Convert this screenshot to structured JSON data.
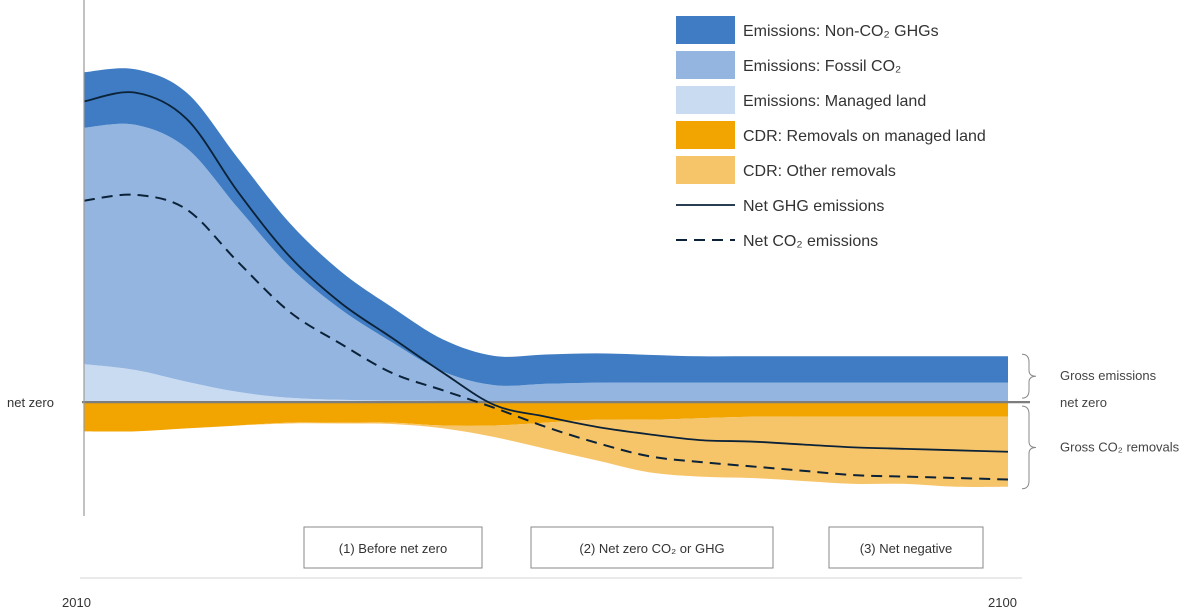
{
  "chart_data": {
    "type": "area",
    "x": [
      2010,
      2015,
      2020,
      2025,
      2030,
      2035,
      2040,
      2045,
      2050,
      2055,
      2060,
      2065,
      2070,
      2075,
      2080,
      2085,
      2090,
      2095,
      2100
    ],
    "xlim": [
      2010,
      2100
    ],
    "ylim": [
      -3.9,
      13.5
    ],
    "series": [
      {
        "name": "Emissions: Non-CO2 GHGs",
        "kind": "stack-positive",
        "color": "#3f7cc3",
        "values": [
          1.9,
          1.9,
          1.9,
          1.7,
          1.5,
          1.3,
          1.2,
          1.1,
          1.0,
          1.0,
          1.0,
          0.95,
          0.9,
          0.9,
          0.9,
          0.9,
          0.9,
          0.9,
          0.9
        ]
      },
      {
        "name": "Emissions: Fossil CO2",
        "kind": "stack-positive",
        "color": "#93b5e0",
        "values": [
          8.1,
          8.4,
          8.0,
          6.3,
          4.5,
          3.1,
          2.0,
          1.0,
          0.55,
          0.6,
          0.65,
          0.65,
          0.65,
          0.65,
          0.65,
          0.65,
          0.65,
          0.65,
          0.65
        ]
      },
      {
        "name": "Emissions: Managed land",
        "kind": "stack-positive",
        "color": "#c9dbf1",
        "values": [
          1.3,
          1.1,
          0.7,
          0.35,
          0.15,
          0.08,
          0.05,
          0.04,
          0.03,
          0.03,
          0.02,
          0.02,
          0.02,
          0.02,
          0.02,
          0.02,
          0.02,
          0.02,
          0.02
        ]
      },
      {
        "name": "CDR: Removals on managed land",
        "kind": "stack-negative",
        "color": "#f2a400",
        "values": [
          -1.0,
          -1.0,
          -0.9,
          -0.8,
          -0.7,
          -0.7,
          -0.7,
          -0.8,
          -0.8,
          -0.7,
          -0.6,
          -0.6,
          -0.55,
          -0.5,
          -0.5,
          -0.5,
          -0.5,
          -0.5,
          -0.5
        ]
      },
      {
        "name": "CDR: Other removals",
        "kind": "stack-negative",
        "color": "#f7c569",
        "values": [
          0,
          0,
          0,
          0,
          -0.03,
          -0.03,
          -0.05,
          -0.1,
          -0.4,
          -0.9,
          -1.4,
          -1.8,
          -2.0,
          -2.1,
          -2.2,
          -2.3,
          -2.3,
          -2.4,
          -2.4
        ]
      },
      {
        "name": "Net GHG emissions",
        "kind": "line",
        "color": "#0b2238",
        "values": [
          10.3,
          10.6,
          9.7,
          7.2,
          5.0,
          3.4,
          2.2,
          1.0,
          -0.1,
          -0.5,
          -0.85,
          -1.1,
          -1.3,
          -1.35,
          -1.45,
          -1.55,
          -1.6,
          -1.65,
          -1.7
        ]
      },
      {
        "name": "Net CO2 emissions",
        "kind": "dashed-line",
        "color": "#0b2238",
        "values": [
          6.9,
          7.1,
          6.6,
          4.8,
          3.1,
          2.0,
          1.0,
          0.4,
          -0.2,
          -0.85,
          -1.4,
          -1.85,
          -2.05,
          -2.2,
          -2.35,
          -2.5,
          -2.55,
          -2.6,
          -2.65
        ]
      }
    ],
    "xlabel": "",
    "ylabel": "",
    "tick_labels": {
      "x_start": "2010",
      "x_end": "2100",
      "zero": "net zero"
    },
    "annotations": {
      "gross_emissions": "Gross emissions",
      "net_zero_right": "net zero",
      "gross_removals": "Gross CO₂ removals"
    },
    "phases": [
      "(1) Before net zero",
      "(2) Net zero CO₂ or GHG",
      "(3) Net negative"
    ],
    "legend_position": "top-right",
    "grid": false
  },
  "legend": {
    "items": [
      {
        "label": "Emissions: Non-CO₂ GHGs",
        "kind": "swatch",
        "color": "#3f7cc3"
      },
      {
        "label": "Emissions: Fossil CO₂",
        "kind": "swatch",
        "color": "#93b5e0"
      },
      {
        "label": "Emissions: Managed land",
        "kind": "swatch",
        "color": "#c9dbf1"
      },
      {
        "label": "CDR: Removals on managed land",
        "kind": "swatch",
        "color": "#f2a400"
      },
      {
        "label": "CDR: Other removals",
        "kind": "swatch",
        "color": "#f7c569"
      },
      {
        "label": "Net GHG emissions",
        "kind": "line",
        "color": "#0b2238"
      },
      {
        "label": "Net CO₂ emissions",
        "kind": "dashed",
        "color": "#0b2238"
      }
    ]
  }
}
